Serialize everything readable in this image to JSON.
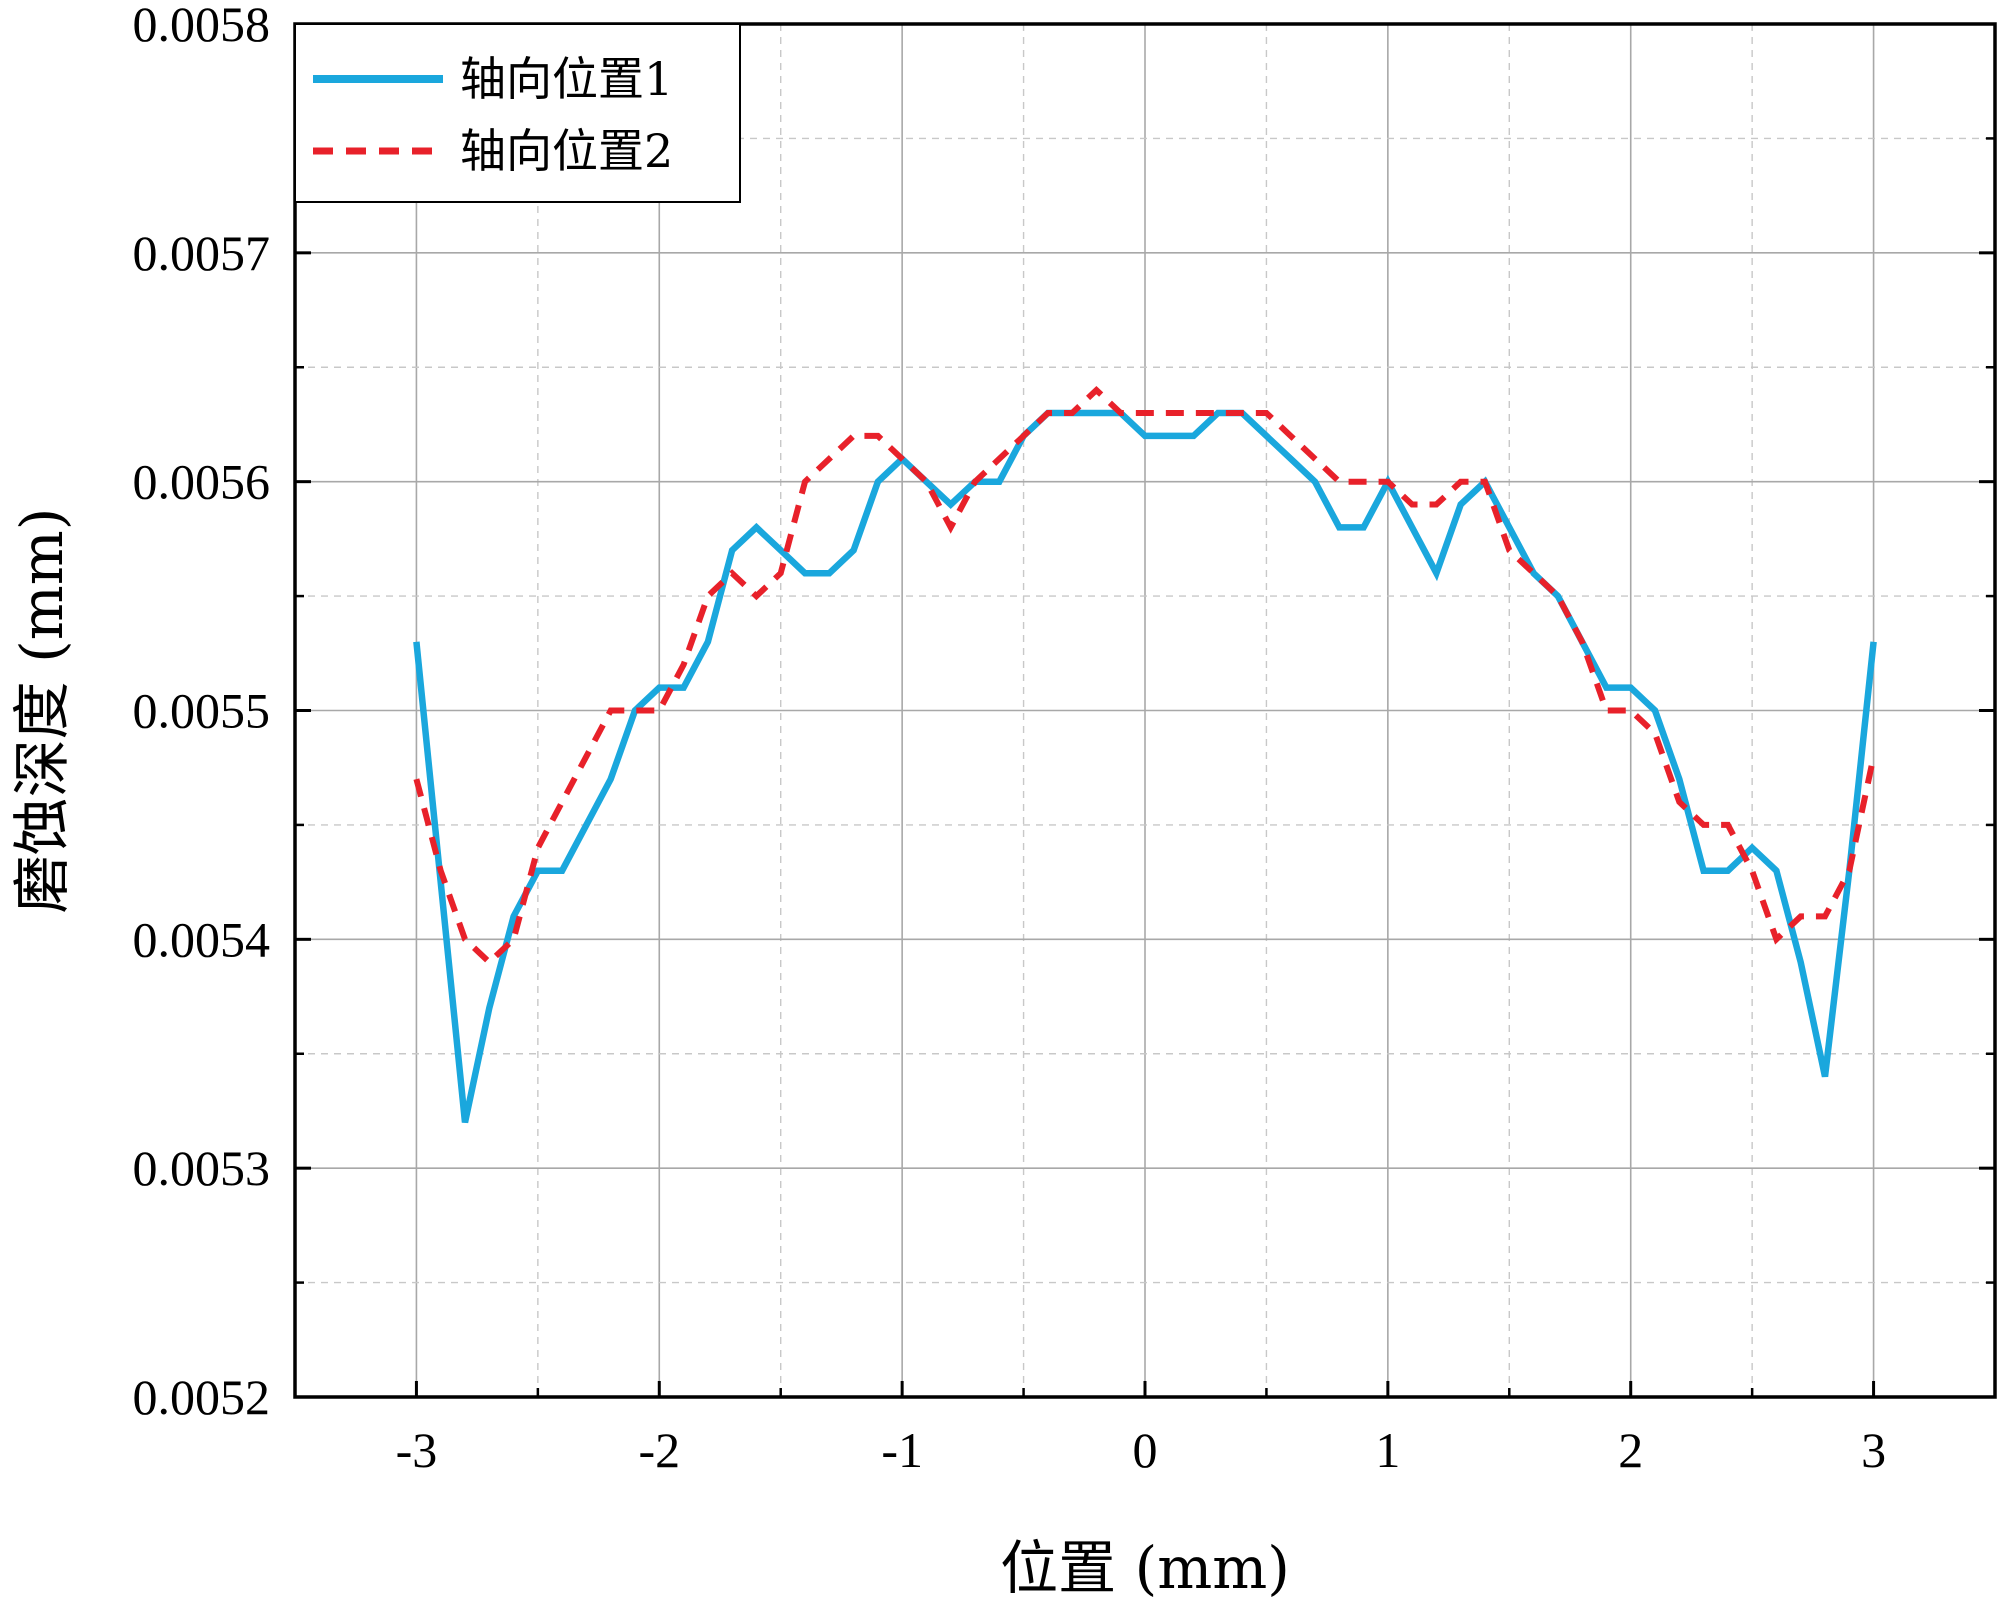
{
  "chart_data": {
    "type": "line",
    "title": "",
    "xlabel": "位置 (mm)",
    "ylabel": "磨蚀深度 (mm)",
    "xlim": [
      -3.5,
      3.5
    ],
    "ylim": [
      0.0052,
      0.0058
    ],
    "x_ticks": [
      -3,
      -2,
      -1,
      0,
      1,
      2,
      3
    ],
    "x_tick_labels": [
      "-3",
      "-2",
      "-1",
      "0",
      "1",
      "2",
      "3"
    ],
    "y_ticks": [
      0.0052,
      0.0053,
      0.0054,
      0.0055,
      0.0056,
      0.0057,
      0.0058
    ],
    "y_tick_labels": [
      "0.0052",
      "0.0053",
      "0.0054",
      "0.0055",
      "0.0056",
      "0.0057",
      "0.0058"
    ],
    "grid": true,
    "legend_position": "top-left",
    "series": [
      {
        "name": "轴向位置1",
        "color": "#1aa7dd",
        "style": "solid",
        "x": [
          -3.0,
          -2.8,
          -2.7,
          -2.6,
          -2.5,
          -2.4,
          -2.3,
          -2.2,
          -2.1,
          -2.0,
          -1.9,
          -1.8,
          -1.7,
          -1.6,
          -1.5,
          -1.4,
          -1.3,
          -1.2,
          -1.1,
          -1.0,
          -0.9,
          -0.8,
          -0.7,
          -0.6,
          -0.5,
          -0.4,
          -0.3,
          -0.2,
          -0.1,
          0.0,
          0.1,
          0.2,
          0.3,
          0.4,
          0.5,
          0.6,
          0.7,
          0.8,
          0.9,
          1.0,
          1.1,
          1.2,
          1.3,
          1.4,
          1.5,
          1.6,
          1.7,
          1.8,
          1.9,
          2.0,
          2.1,
          2.2,
          2.3,
          2.4,
          2.5,
          2.6,
          2.7,
          2.8,
          2.9,
          3.0
        ],
        "y": [
          0.00553,
          0.00532,
          0.00537,
          0.00541,
          0.00543,
          0.00543,
          0.00545,
          0.00547,
          0.0055,
          0.00551,
          0.00551,
          0.00553,
          0.00557,
          0.00558,
          0.00557,
          0.00556,
          0.00556,
          0.00557,
          0.0056,
          0.00561,
          0.0056,
          0.00559,
          0.0056,
          0.0056,
          0.00562,
          0.00563,
          0.00563,
          0.00563,
          0.00563,
          0.00562,
          0.00562,
          0.00562,
          0.00563,
          0.00563,
          0.00562,
          0.00561,
          0.0056,
          0.00558,
          0.00558,
          0.0056,
          0.00558,
          0.00556,
          0.00559,
          0.0056,
          0.00558,
          0.00556,
          0.00555,
          0.00553,
          0.00551,
          0.00551,
          0.0055,
          0.00547,
          0.00543,
          0.00543,
          0.00544,
          0.00543,
          0.00539,
          0.00534,
          0.00543,
          0.00553
        ]
      },
      {
        "name": "轴向位置2",
        "color": "#e8212a",
        "style": "dashed",
        "x": [
          -3.0,
          -2.9,
          -2.8,
          -2.7,
          -2.6,
          -2.5,
          -2.4,
          -2.3,
          -2.2,
          -2.1,
          -2.0,
          -1.9,
          -1.8,
          -1.7,
          -1.6,
          -1.5,
          -1.4,
          -1.3,
          -1.2,
          -1.1,
          -1.0,
          -0.9,
          -0.8,
          -0.7,
          -0.6,
          -0.5,
          -0.4,
          -0.3,
          -0.2,
          -0.1,
          0.0,
          0.1,
          0.2,
          0.3,
          0.4,
          0.5,
          0.6,
          0.7,
          0.8,
          0.9,
          1.0,
          1.1,
          1.2,
          1.3,
          1.4,
          1.5,
          1.6,
          1.7,
          1.8,
          1.9,
          2.0,
          2.1,
          2.2,
          2.3,
          2.4,
          2.5,
          2.6,
          2.7,
          2.8,
          2.9,
          3.0
        ],
        "y": [
          0.00547,
          0.00543,
          0.0054,
          0.00539,
          0.0054,
          0.00544,
          0.00546,
          0.00548,
          0.0055,
          0.0055,
          0.0055,
          0.00552,
          0.00555,
          0.00556,
          0.00555,
          0.00556,
          0.0056,
          0.00561,
          0.00562,
          0.00562,
          0.00561,
          0.0056,
          0.00558,
          0.0056,
          0.00561,
          0.00562,
          0.00563,
          0.00563,
          0.00564,
          0.00563,
          0.00563,
          0.00563,
          0.00563,
          0.00563,
          0.00563,
          0.00563,
          0.00562,
          0.00561,
          0.0056,
          0.0056,
          0.0056,
          0.00559,
          0.00559,
          0.0056,
          0.0056,
          0.00557,
          0.00556,
          0.00555,
          0.00553,
          0.0055,
          0.0055,
          0.00549,
          0.00546,
          0.00545,
          0.00545,
          0.00543,
          0.0054,
          0.00541,
          0.00541,
          0.00543,
          0.00548
        ]
      }
    ]
  }
}
